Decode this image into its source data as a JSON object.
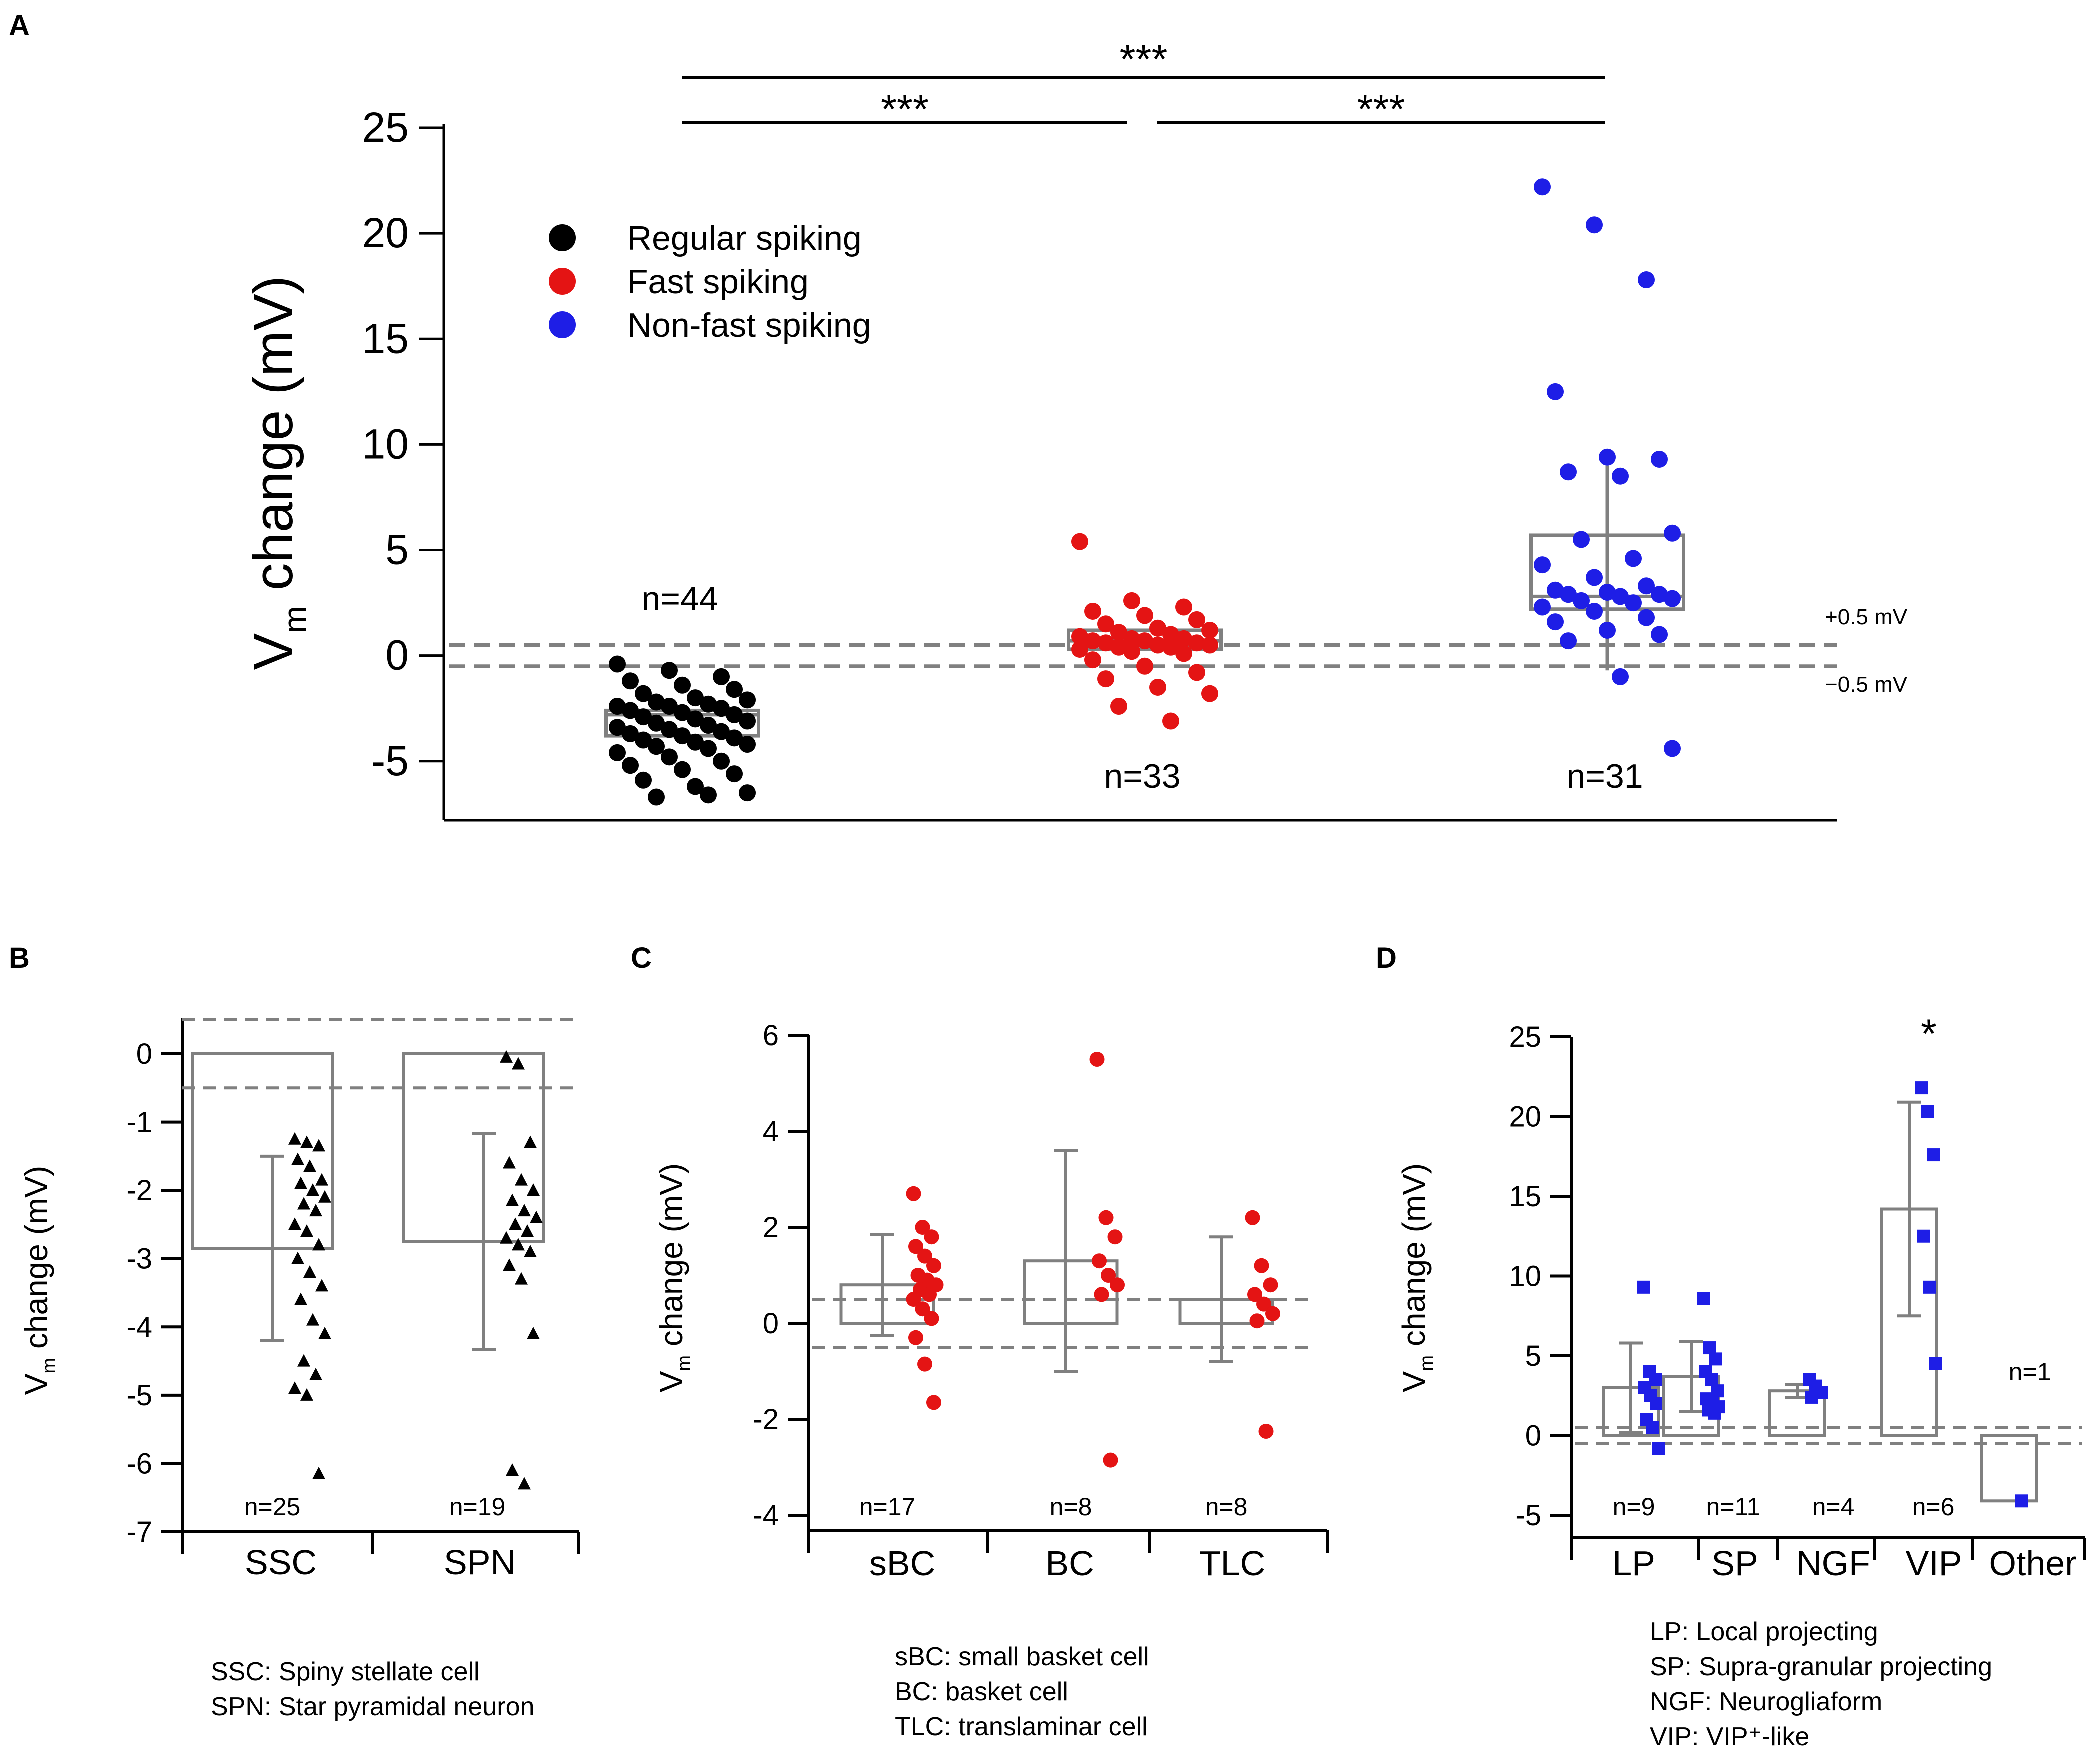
{
  "chart_data": [
    {
      "panel": "A",
      "type": "box-scatter",
      "ylabel": "change (mV)",
      "ylabel_symbol": "V",
      "ylabel_sub": "m",
      "ylim": [
        -7.8,
        25
      ],
      "yticks": [
        25,
        20,
        15,
        10,
        5,
        0,
        -5
      ],
      "legend": [
        {
          "label": "Regular spiking",
          "color": "#000000"
        },
        {
          "label": "Fast spiking",
          "color": "#e41414"
        },
        {
          "label": "Non-fast spiking",
          "color": "#1e1ee6"
        }
      ],
      "threshold_lines": [
        0.5,
        -0.5
      ],
      "threshold_labels": [
        "+0.5 mV",
        "−0.5 mV"
      ],
      "significance": [
        "***",
        "***",
        "***"
      ],
      "groups": [
        {
          "name": "Regular spiking",
          "n_label": "n=44",
          "color": "#000000",
          "box": {
            "q1": -3.8,
            "median": -2.8,
            "q3": -2.6
          },
          "points": [
            -0.4,
            -0.7,
            -1.0,
            -1.2,
            -1.4,
            -1.6,
            -1.8,
            -2.0,
            -2.1,
            -2.2,
            -2.3,
            -2.4,
            -2.4,
            -2.5,
            -2.6,
            -2.7,
            -2.8,
            -2.9,
            -3.0,
            -3.1,
            -3.2,
            -3.3,
            -3.4,
            -3.5,
            -3.6,
            -3.7,
            -3.8,
            -3.9,
            -4.0,
            -4.1,
            -4.2,
            -4.3,
            -4.4,
            -4.6,
            -4.8,
            -5.0,
            -5.2,
            -5.4,
            -5.6,
            -5.9,
            -6.2,
            -6.5,
            -6.7,
            -6.6
          ]
        },
        {
          "name": "Fast spiking",
          "n_label": "n=33",
          "color": "#e41414",
          "box": {
            "q1": 0.3,
            "median": 0.7,
            "q3": 1.2
          },
          "points": [
            5.4,
            2.6,
            2.3,
            2.1,
            1.9,
            1.7,
            1.5,
            1.3,
            1.2,
            1.1,
            1.0,
            0.9,
            0.8,
            0.8,
            0.7,
            0.7,
            0.6,
            0.6,
            0.5,
            0.5,
            0.4,
            0.4,
            0.3,
            0.2,
            0.1,
            -0.2,
            -0.5,
            -0.8,
            -1.1,
            -1.5,
            -1.8,
            -2.4,
            -3.1
          ]
        },
        {
          "name": "Non-fast spiking",
          "n_label": "n=31",
          "color": "#1e1ee6",
          "box": {
            "q1": 2.2,
            "median": 2.8,
            "q3": 5.7
          },
          "whisker": [
            -0.7,
            9.0
          ],
          "points": [
            22.2,
            20.4,
            17.8,
            12.5,
            9.4,
            9.3,
            8.7,
            8.5,
            5.8,
            5.5,
            4.6,
            4.3,
            3.7,
            3.3,
            3.1,
            3.0,
            2.9,
            2.9,
            2.8,
            2.7,
            2.6,
            2.5,
            2.3,
            2.1,
            1.8,
            1.6,
            1.2,
            1.0,
            0.7,
            -1.0,
            -4.4
          ]
        }
      ]
    },
    {
      "panel": "B",
      "type": "bar-scatter",
      "ylabel": "change (mV)",
      "ylabel_symbol": "V",
      "ylabel_sub": "m",
      "ylim": [
        -7,
        0.6
      ],
      "yticks": [
        0,
        -1,
        -2,
        -3,
        -4,
        -5,
        -6,
        -7
      ],
      "threshold_lines": [
        0.5,
        -0.5
      ],
      "categories": [
        "SSC",
        "SPN"
      ],
      "groups": [
        {
          "name": "SSC",
          "n_label": "n=25",
          "mean": -2.85,
          "sd": 1.35,
          "points": [
            -1.25,
            -1.3,
            -1.35,
            -1.55,
            -1.65,
            -1.85,
            -1.9,
            -2.0,
            -2.1,
            -2.2,
            -2.3,
            -2.5,
            -2.6,
            -2.8,
            -3.0,
            -3.2,
            -3.4,
            -3.6,
            -3.9,
            -4.1,
            -4.5,
            -4.7,
            -4.9,
            -5.0,
            -6.15
          ]
        },
        {
          "name": "SPN",
          "n_label": "n=19",
          "mean": -2.75,
          "sd": 1.58,
          "points": [
            -0.05,
            -0.15,
            -1.3,
            -1.6,
            -1.85,
            -2.0,
            -2.15,
            -2.3,
            -2.4,
            -2.5,
            -2.6,
            -2.7,
            -2.8,
            -2.9,
            -3.1,
            -3.3,
            -4.1,
            -6.1,
            -6.3
          ]
        }
      ],
      "legend_lines": [
        "SSC: Spiny stellate cell",
        "SPN: Star pyramidal neuron"
      ]
    },
    {
      "panel": "C",
      "type": "bar-scatter",
      "ylabel": "change (mV)",
      "ylabel_symbol": "V",
      "ylabel_sub": "m",
      "ylim": [
        -4,
        6
      ],
      "yticks": [
        6,
        4,
        2,
        0,
        -2,
        -4
      ],
      "threshold_lines": [
        0.5,
        -0.5
      ],
      "categories": [
        "sBC",
        "BC",
        "TLC"
      ],
      "groups": [
        {
          "name": "sBC",
          "n_label": "n=17",
          "mean": 0.8,
          "sd": 1.05,
          "points": [
            2.7,
            2.0,
            1.8,
            1.6,
            1.4,
            1.2,
            1.0,
            0.9,
            0.8,
            0.7,
            0.6,
            0.5,
            0.3,
            0.1,
            -0.3,
            -0.85,
            -1.65
          ]
        },
        {
          "name": "BC",
          "n_label": "n=8",
          "mean": 1.3,
          "sd": 2.3,
          "points": [
            5.5,
            2.2,
            1.8,
            1.3,
            1.0,
            0.8,
            0.6,
            -2.85
          ]
        },
        {
          "name": "TLC",
          "n_label": "n=8",
          "mean": 0.5,
          "sd": 1.3,
          "points": [
            2.2,
            1.2,
            0.8,
            0.6,
            0.4,
            0.2,
            0.05,
            -2.25
          ]
        }
      ],
      "legend_lines": [
        "sBC: small basket cell",
        "BC: basket cell",
        "TLC: translaminar cell"
      ]
    },
    {
      "panel": "D",
      "type": "bar-scatter",
      "ylabel": "change (mV)",
      "ylabel_symbol": "V",
      "ylabel_sub": "m",
      "ylim": [
        -5,
        25
      ],
      "yticks": [
        25,
        20,
        15,
        10,
        5,
        0,
        -5
      ],
      "threshold_lines": [
        0.5,
        -0.5
      ],
      "categories": [
        "LP",
        "SP",
        "NGF",
        "VIP",
        "Other"
      ],
      "significance": "*",
      "groups": [
        {
          "name": "LP",
          "n_label": "n=9",
          "mean": 3.0,
          "sd": 2.8,
          "points": [
            9.3,
            4.0,
            3.5,
            3.0,
            2.5,
            2.0,
            1.0,
            0.5,
            -0.8
          ]
        },
        {
          "name": "SP",
          "n_label": "n=11",
          "mean": 3.7,
          "sd": 2.2,
          "points": [
            8.6,
            5.5,
            4.8,
            4.0,
            3.5,
            2.8,
            2.3,
            2.0,
            1.8,
            1.6,
            1.4
          ]
        },
        {
          "name": "NGF",
          "n_label": "n=4",
          "mean": 2.8,
          "sd": 0.4,
          "points": [
            3.5,
            3.1,
            2.7,
            2.4
          ]
        },
        {
          "name": "VIP",
          "n_label": "n=6",
          "mean": 14.2,
          "sd": 6.7,
          "points": [
            21.8,
            20.3,
            17.6,
            12.5,
            9.3,
            4.5
          ]
        },
        {
          "name": "Other",
          "n_label": "n=1",
          "mean": -4.1,
          "sd": 0,
          "points": [
            -4.1
          ]
        }
      ],
      "legend_lines": [
        "LP: Local projecting",
        "SP: Supra-granular projecting",
        "NGF: Neurogliaform",
        "VIP: VIP⁺-like"
      ]
    }
  ],
  "panel_letters": [
    "A",
    "B",
    "C",
    "D"
  ]
}
